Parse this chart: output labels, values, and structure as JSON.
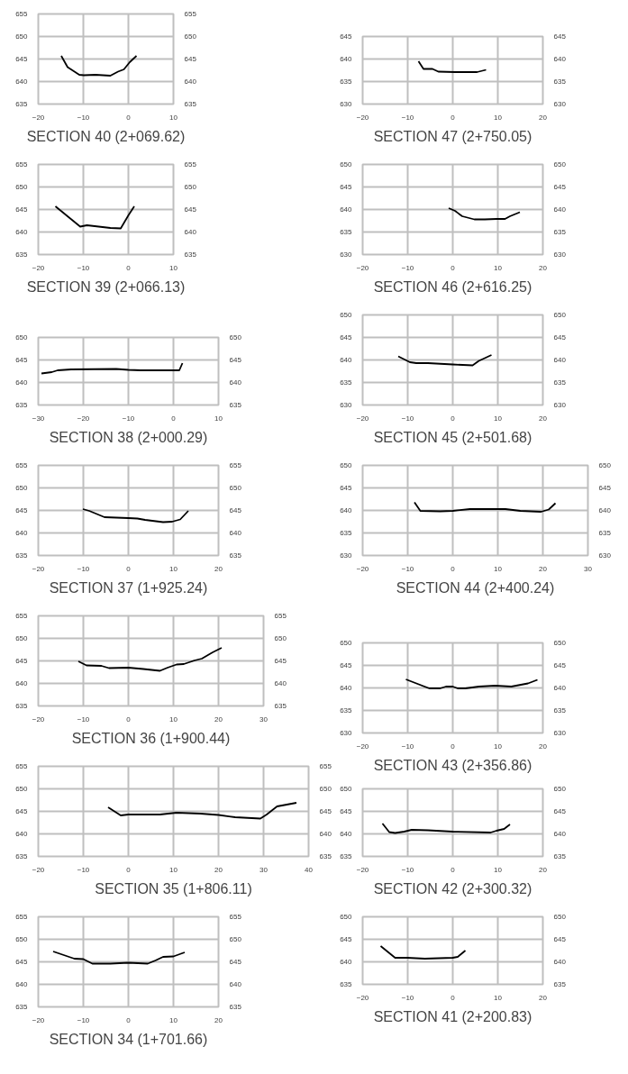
{
  "chart_data": [
    {
      "type": "line",
      "title": "SECTION 40 (2+069.62)",
      "color": "#000000",
      "grid": true,
      "xlim": [
        -20,
        10
      ],
      "xticks": [
        -20,
        -10,
        0,
        10
      ],
      "ylim": [
        635,
        655
      ],
      "yticks": [
        635,
        640,
        645,
        650,
        655
      ],
      "y2lim": [
        635,
        655
      ],
      "y2ticks": [
        635,
        640,
        645,
        650,
        655
      ],
      "x": [
        -14.9,
        -13.5,
        -10.9,
        -9.9,
        -7.3,
        -4,
        -2.3,
        -1,
        0.3,
        1.8
      ],
      "values": [
        645.7,
        643.2,
        641.5,
        641.4,
        641.5,
        641.3,
        642.2,
        642.7,
        644.3,
        645.7
      ]
    },
    {
      "type": "line",
      "title": "SECTION 47 (2+750.05)",
      "color": "#000000",
      "grid": true,
      "xlim": [
        -20,
        20
      ],
      "xticks": [
        -20,
        -10,
        0,
        10,
        20
      ],
      "ylim": [
        630,
        645
      ],
      "yticks": [
        630,
        635,
        640,
        645
      ],
      "y2lim": [
        630,
        645
      ],
      "y2ticks": [
        630,
        635,
        640,
        645
      ],
      "x": [
        -7.6,
        -6.5,
        -4.5,
        -3.2,
        0.5,
        5.4,
        7.4
      ],
      "values": [
        639.5,
        637.8,
        637.8,
        637.2,
        637.1,
        637.1,
        637.6
      ]
    },
    {
      "type": "line",
      "title": "SECTION 39 (2+066.13)",
      "color": "#000000",
      "grid": true,
      "xlim": [
        -20,
        10
      ],
      "xticks": [
        -20,
        -10,
        0,
        10
      ],
      "ylim": [
        635,
        655
      ],
      "yticks": [
        635,
        640,
        645,
        650,
        655
      ],
      "y2lim": [
        635,
        655
      ],
      "y2ticks": [
        635,
        640,
        645,
        650,
        655
      ],
      "x": [
        -16.2,
        -10.7,
        -9.2,
        -4,
        -1.7,
        0,
        1.3
      ],
      "values": [
        645.7,
        641.2,
        641.5,
        640.9,
        640.8,
        643.7,
        645.7
      ]
    },
    {
      "type": "line",
      "title": "SECTION 46 (2+616.25)",
      "color": "#000000",
      "grid": true,
      "xlim": [
        -20,
        20
      ],
      "xticks": [
        -20,
        -10,
        0,
        10,
        20
      ],
      "ylim": [
        630,
        650
      ],
      "yticks": [
        630,
        635,
        640,
        645,
        650
      ],
      "y2lim": [
        630,
        650
      ],
      "y2ticks": [
        630,
        635,
        640,
        645,
        650
      ],
      "x": [
        -0.9,
        0.5,
        2.1,
        4.8,
        7.1,
        9.7,
        11.6,
        12.7,
        14.9
      ],
      "values": [
        640.3,
        639.7,
        638.5,
        637.8,
        637.8,
        637.9,
        637.9,
        638.5,
        639.4
      ]
    },
    {
      "type": "line",
      "title": "SECTION 38 (2+000.29)",
      "color": "#000000",
      "grid": true,
      "xlim": [
        -30,
        10
      ],
      "xticks": [
        -30,
        -20,
        -10,
        0,
        10
      ],
      "ylim": [
        635,
        650
      ],
      "yticks": [
        635,
        640,
        645,
        650
      ],
      "y2lim": [
        635,
        650
      ],
      "y2ticks": [
        635,
        640,
        645,
        650
      ],
      "x": [
        -29.3,
        -27,
        -25.7,
        -22.7,
        -12.7,
        -10,
        -7.3,
        1.3,
        2
      ],
      "values": [
        642.0,
        642.3,
        642.7,
        642.9,
        643.0,
        642.8,
        642.7,
        642.7,
        644.3
      ]
    },
    {
      "type": "line",
      "title": "SECTION 45 (2+501.68)",
      "color": "#000000",
      "grid": true,
      "xlim": [
        -20,
        20
      ],
      "xticks": [
        -20,
        -10,
        0,
        10,
        20
      ],
      "ylim": [
        630,
        650
      ],
      "yticks": [
        630,
        635,
        640,
        645,
        650
      ],
      "y2lim": [
        630,
        650
      ],
      "y2ticks": [
        630,
        635,
        640,
        645,
        650
      ],
      "x": [
        -12.1,
        -9.5,
        -8.1,
        -5.5,
        0,
        4.4,
        5.8,
        8.6
      ],
      "values": [
        640.8,
        639.5,
        639.3,
        639.3,
        639.0,
        638.8,
        639.8,
        641.1
      ]
    },
    {
      "type": "line",
      "title": "SECTION 37 (1+925.24)",
      "color": "#000000",
      "grid": true,
      "xlim": [
        -20,
        20
      ],
      "xticks": [
        -20,
        -10,
        0,
        10,
        20
      ],
      "ylim": [
        635,
        655
      ],
      "yticks": [
        635,
        640,
        645,
        650,
        655
      ],
      "y2lim": [
        635,
        655
      ],
      "y2ticks": [
        635,
        640,
        645,
        650,
        655
      ],
      "x": [
        -10.1,
        -8.7,
        -5.3,
        0,
        2,
        3.7,
        7.7,
        9.7,
        11.5,
        13.3
      ],
      "values": [
        645.3,
        644.9,
        643.5,
        643.3,
        643.2,
        642.9,
        642.4,
        642.5,
        643.0,
        644.9
      ]
    },
    {
      "type": "line",
      "title": "SECTION 44 (2+400.24)",
      "color": "#000000",
      "grid": true,
      "xlim": [
        -20,
        30
      ],
      "xticks": [
        -20,
        -10,
        0,
        10,
        20,
        30
      ],
      "ylim": [
        630,
        650
      ],
      "yticks": [
        630,
        635,
        640,
        645,
        650
      ],
      "y2lim": [
        630,
        650
      ],
      "y2ticks": [
        630,
        635,
        640,
        645,
        650
      ],
      "x": [
        -8.5,
        -7.2,
        -2.8,
        0,
        3.8,
        11.7,
        15,
        19.6,
        21.3,
        22.8
      ],
      "values": [
        641.8,
        639.9,
        639.8,
        639.9,
        640.3,
        640.3,
        639.9,
        639.7,
        640.2,
        641.6
      ]
    },
    {
      "type": "line",
      "title": "SECTION 36 (1+900.44)",
      "color": "#000000",
      "grid": true,
      "xlim": [
        -20,
        30
      ],
      "xticks": [
        -20,
        -10,
        0,
        10,
        20,
        30
      ],
      "ylim": [
        635,
        655
      ],
      "yticks": [
        635,
        640,
        645,
        650,
        655
      ],
      "y2lim": [
        635,
        655
      ],
      "y2ticks": [
        635,
        640,
        645,
        650,
        655
      ],
      "x": [
        -11.1,
        -9.3,
        -6,
        -4.3,
        0,
        3.3,
        7,
        8.7,
        10.7,
        12.3,
        14.7,
        16.3,
        18.7,
        20.7
      ],
      "values": [
        644.9,
        644.0,
        643.9,
        643.4,
        643.5,
        643.2,
        642.8,
        643.5,
        644.2,
        644.3,
        645.1,
        645.5,
        646.9,
        647.9
      ]
    },
    {
      "type": "line",
      "title": "SECTION 43 (2+356.86)",
      "color": "#000000",
      "grid": true,
      "xlim": [
        -20,
        20
      ],
      "xticks": [
        -20,
        -10,
        0,
        10,
        20
      ],
      "ylim": [
        630,
        650
      ],
      "yticks": [
        630,
        635,
        640,
        645,
        650
      ],
      "y2lim": [
        630,
        650
      ],
      "y2ticks": [
        630,
        635,
        640,
        645,
        650
      ],
      "x": [
        -10.4,
        -5.2,
        -2.8,
        -1.5,
        0,
        1.1,
        2.8,
        5.8,
        9.4,
        13,
        16.7,
        18.8
      ],
      "values": [
        641.9,
        639.9,
        639.9,
        640.3,
        640.3,
        639.9,
        639.9,
        640.3,
        640.5,
        640.3,
        641.0,
        641.8
      ]
    },
    {
      "type": "line",
      "title": "SECTION 35 (1+806.11)",
      "color": "#000000",
      "grid": true,
      "xlim": [
        -20,
        40
      ],
      "xticks": [
        -20,
        -10,
        0,
        10,
        20,
        30,
        40
      ],
      "ylim": [
        635,
        655
      ],
      "yticks": [
        635,
        640,
        645,
        650,
        655
      ],
      "y2lim": [
        635,
        655
      ],
      "y2ticks": [
        635,
        640,
        645,
        650,
        655
      ],
      "x": [
        -4.5,
        -1.7,
        0,
        7,
        10.7,
        16,
        20,
        23.7,
        29.3,
        30.7,
        33,
        37.3
      ],
      "values": [
        645.9,
        644.1,
        644.3,
        644.3,
        644.7,
        644.5,
        644.2,
        643.7,
        643.4,
        644.3,
        646.1,
        646.9
      ]
    },
    {
      "type": "line",
      "title": "SECTION 42 (2+300.32)",
      "color": "#000000",
      "grid": true,
      "xlim": [
        -20,
        20
      ],
      "xticks": [
        -20,
        -10,
        0,
        10,
        20
      ],
      "ylim": [
        635,
        650
      ],
      "yticks": [
        635,
        640,
        645,
        650
      ],
      "y2lim": [
        635,
        650
      ],
      "y2ticks": [
        635,
        640,
        645,
        650
      ],
      "x": [
        -15.6,
        -14.1,
        -12.8,
        -10.8,
        -9.1,
        -5.5,
        0,
        8.4,
        9.7,
        11.4,
        12.7
      ],
      "values": [
        642.3,
        640.4,
        640.2,
        640.5,
        640.9,
        640.8,
        640.5,
        640.3,
        640.7,
        641.1,
        642.1
      ]
    },
    {
      "type": "line",
      "title": "SECTION 34 (1+701.66)",
      "color": "#000000",
      "grid": true,
      "xlim": [
        -20,
        20
      ],
      "xticks": [
        -20,
        -10,
        0,
        10,
        20
      ],
      "ylim": [
        635,
        655
      ],
      "yticks": [
        635,
        640,
        645,
        650,
        655
      ],
      "y2lim": [
        635,
        655
      ],
      "y2ticks": [
        635,
        640,
        645,
        650,
        655
      ],
      "x": [
        -16.7,
        -12,
        -10,
        -8,
        -4,
        0,
        4.3,
        6,
        7.7,
        10,
        12.5
      ],
      "values": [
        647.3,
        645.7,
        645.6,
        644.6,
        644.6,
        644.8,
        644.6,
        645.3,
        646.1,
        646.2,
        647.1
      ]
    },
    {
      "type": "line",
      "title": "SECTION 41 (2+200.83)",
      "color": "#000000",
      "grid": true,
      "xlim": [
        -20,
        20
      ],
      "xticks": [
        -20,
        -10,
        0,
        10,
        20
      ],
      "ylim": [
        635,
        650
      ],
      "yticks": [
        635,
        640,
        645,
        650
      ],
      "y2lim": [
        635,
        650
      ],
      "y2ticks": [
        635,
        640,
        645,
        650
      ],
      "x": [
        -16,
        -12.8,
        -10.1,
        -6.2,
        0,
        1.1,
        2.8
      ],
      "values": [
        643.5,
        640.9,
        640.9,
        640.7,
        640.9,
        641.1,
        642.5
      ]
    }
  ]
}
